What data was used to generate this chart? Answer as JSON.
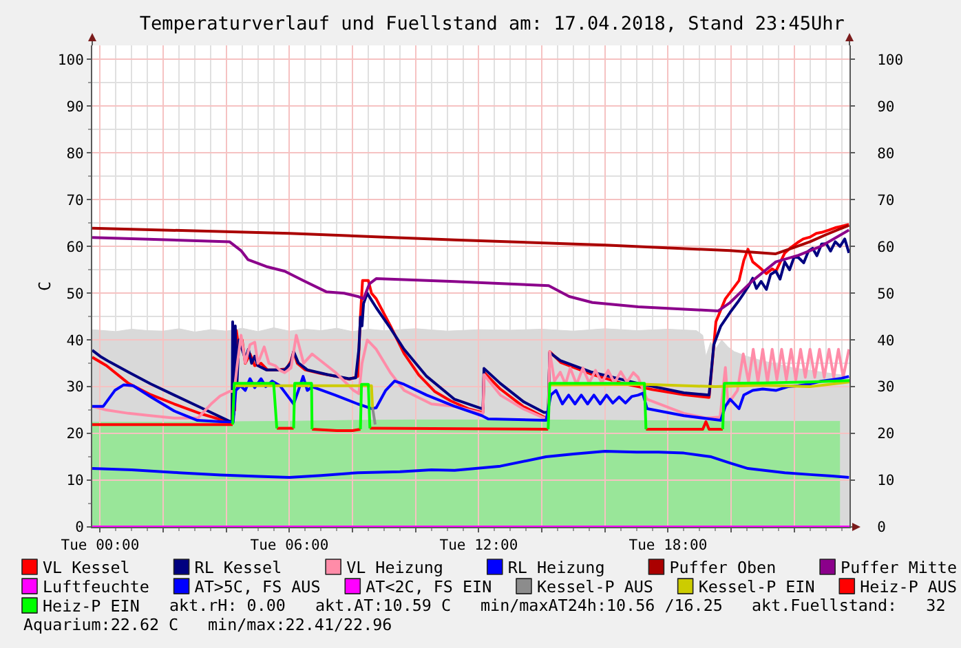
{
  "chart_data": {
    "type": "line",
    "title": "Temperaturverlauf und Fuellstand am: 17.04.2018, Stand 23:45Uhr",
    "ylabel": "C",
    "xlim": [
      "2018-04-16T23:45",
      "2018-04-17T23:45"
    ],
    "xticks": [
      {
        "value": "2018-04-17T00:00",
        "label": "Tue 00:00"
      },
      {
        "value": "2018-04-17T02:00",
        "label": null
      },
      {
        "value": "2018-04-17T04:00",
        "label": null
      },
      {
        "value": "2018-04-17T06:00",
        "label": "Tue 06:00"
      },
      {
        "value": "2018-04-17T08:00",
        "label": null
      },
      {
        "value": "2018-04-17T10:00",
        "label": null
      },
      {
        "value": "2018-04-17T12:00",
        "label": "Tue 12:00"
      },
      {
        "value": "2018-04-17T14:00",
        "label": null
      },
      {
        "value": "2018-04-17T16:00",
        "label": null
      },
      {
        "value": "2018-04-17T18:00",
        "label": "Tue 18:00"
      },
      {
        "value": "2018-04-17T20:00",
        "label": null
      },
      {
        "value": "2018-04-17T22:00",
        "label": null
      }
    ],
    "ylim": [
      0,
      103
    ],
    "yticks": [
      0,
      10,
      20,
      30,
      40,
      50,
      60,
      70,
      80,
      90,
      100
    ],
    "y2lim": [
      0,
      103
    ],
    "y2ticks": [
      0,
      10,
      20,
      30,
      40,
      50,
      60,
      70,
      80,
      90,
      100
    ],
    "grid": true,
    "legend": "bottom",
    "series": [
      {
        "type": "area",
        "color": "#d9d9d9",
        "x": [
          "2018-04-16T23:45",
          "2018-04-17T00:30",
          "2018-04-17T01:00",
          "2018-04-17T01:30",
          "2018-04-17T02:00",
          "2018-04-17T02:30",
          "2018-04-17T03:00",
          "2018-04-17T03:30",
          "2018-04-17T04:00",
          "2018-04-17T04:30",
          "2018-04-17T05:00",
          "2018-04-17T05:30",
          "2018-04-17T06:00",
          "2018-04-17T06:30",
          "2018-04-17T07:00",
          "2018-04-17T07:30",
          "2018-04-17T08:00",
          "2018-04-17T08:30",
          "2018-04-17T09:00",
          "2018-04-17T10:00",
          "2018-04-17T11:00",
          "2018-04-17T12:00",
          "2018-04-17T13:00",
          "2018-04-17T14:00",
          "2018-04-17T15:00",
          "2018-04-17T16:00",
          "2018-04-17T17:00",
          "2018-04-17T18:00",
          "2018-04-17T18:54",
          "2018-04-17T19:06",
          "2018-04-17T19:12",
          "2018-04-17T19:21",
          "2018-04-17T19:30",
          "2018-04-17T19:42",
          "2018-04-17T19:54",
          "2018-04-17T20:06",
          "2018-04-17T20:30",
          "2018-04-17T21:00",
          "2018-04-17T21:30",
          "2018-04-17T22:00",
          "2018-04-17T22:30",
          "2018-04-17T23:00",
          "2018-04-17T23:30",
          "2018-04-17T23:45"
        ],
        "values": [
          42.2,
          41.8,
          42.3,
          42.0,
          41.9,
          42.4,
          41.7,
          42.2,
          41.9,
          42.5,
          41.8,
          42.6,
          41.9,
          42.3,
          42.0,
          42.5,
          41.8,
          42.3,
          42.0,
          42.4,
          41.9,
          42.2,
          42.1,
          42.3,
          41.9,
          42.4,
          42.0,
          42.3,
          42.0,
          41.0,
          36.5,
          39.5,
          38.0,
          40.0,
          38.5,
          37.5,
          36.5,
          35.5,
          34.8,
          34.0,
          33.5,
          33.0,
          32.5,
          32.0
        ]
      },
      {
        "type": "area",
        "color": "#99e699",
        "x": [
          "2018-04-16T23:45",
          "2018-04-17T02:00",
          "2018-04-17T04:00",
          "2018-04-17T06:00",
          "2018-04-17T08:00",
          "2018-04-17T10:00",
          "2018-04-17T12:00",
          "2018-04-17T14:00",
          "2018-04-17T16:00",
          "2018-04-17T18:00",
          "2018-04-17T20:00",
          "2018-04-17T22:00",
          "2018-04-17T23:27"
        ],
        "values": [
          22.4,
          22.4,
          22.5,
          22.6,
          22.8,
          22.9,
          22.9,
          22.9,
          22.8,
          22.7,
          22.6,
          22.6,
          22.6
        ]
      },
      {
        "name": "VL Kessel",
        "color": "#ff0000",
        "x": [
          "2018-04-16T23:45",
          "2018-04-17T00:12",
          "2018-04-17T00:54",
          "2018-04-17T01:36",
          "2018-04-17T02:21",
          "2018-04-17T03:12",
          "2018-04-17T04:06",
          "2018-04-17T04:11",
          "2018-04-17T04:13",
          "2018-04-17T04:16",
          "2018-04-17T04:19",
          "2018-04-17T04:24",
          "2018-04-17T04:30",
          "2018-04-17T04:36",
          "2018-04-17T04:45",
          "2018-04-17T04:54",
          "2018-04-17T05:06",
          "2018-04-17T05:18",
          "2018-04-17T05:36",
          "2018-04-17T05:54",
          "2018-04-17T06:03",
          "2018-04-17T06:08",
          "2018-04-17T06:15",
          "2018-04-17T06:30",
          "2018-04-17T07:00",
          "2018-04-17T07:30",
          "2018-04-17T07:54",
          "2018-04-17T08:10",
          "2018-04-17T08:15",
          "2018-04-17T08:19",
          "2018-04-17T08:30",
          "2018-04-17T08:36",
          "2018-04-17T08:45",
          "2018-04-17T09:12",
          "2018-04-17T09:38",
          "2018-04-17T10:06",
          "2018-04-17T10:36",
          "2018-04-17T11:06",
          "2018-04-17T11:40",
          "2018-04-17T12:06",
          "2018-04-17T12:08",
          "2018-04-17T12:10",
          "2018-04-17T12:41",
          "2018-04-17T13:24",
          "2018-04-17T14:08",
          "2018-04-17T14:12",
          "2018-04-17T14:15",
          "2018-04-17T14:36",
          "2018-04-17T15:36",
          "2018-04-17T16:30",
          "2018-04-17T17:30",
          "2018-04-17T18:30",
          "2018-04-17T19:18",
          "2018-04-17T19:24",
          "2018-04-17T19:31",
          "2018-04-17T19:49",
          "2018-04-17T20:15",
          "2018-04-17T20:24",
          "2018-04-17T20:32",
          "2018-04-17T20:41",
          "2018-04-17T20:54",
          "2018-04-17T21:07",
          "2018-04-17T21:18",
          "2018-04-17T21:25",
          "2018-04-17T21:42",
          "2018-04-17T21:54",
          "2018-04-17T22:06",
          "2018-04-17T22:17",
          "2018-04-17T22:30",
          "2018-04-17T22:42",
          "2018-04-17T22:52",
          "2018-04-17T23:06",
          "2018-04-17T23:18",
          "2018-04-17T23:30",
          "2018-04-17T23:44"
        ],
        "values": [
          36.3,
          34.5,
          30.7,
          28.3,
          26.3,
          24.2,
          22.4,
          22.4,
          42.0,
          25.0,
          42.0,
          38.0,
          40.0,
          35.0,
          37.0,
          34.5,
          35.0,
          33.6,
          33.6,
          33.8,
          35.5,
          37.5,
          35.0,
          33.6,
          32.8,
          32.2,
          31.6,
          32.2,
          45.0,
          52.7,
          52.7,
          50.0,
          48.8,
          43.0,
          37.1,
          32.5,
          29.0,
          27.0,
          25.3,
          24.5,
          24.5,
          33.1,
          29.5,
          25.8,
          23.3,
          23.3,
          37.5,
          35.2,
          32.6,
          30.8,
          29.4,
          28.3,
          27.7,
          35.0,
          43.9,
          48.8,
          52.7,
          57.0,
          59.4,
          56.7,
          55.5,
          54.2,
          55.2,
          54.7,
          58.6,
          59.8,
          60.8,
          61.6,
          62.0,
          62.8,
          63.0,
          63.5,
          64.0,
          64.3,
          64.7
        ]
      },
      {
        "name": "RL Kessel",
        "color": "#000080",
        "x": [
          "2018-04-16T23:45",
          "2018-04-17T00:00",
          "2018-04-17T00:18",
          "2018-04-17T00:54",
          "2018-04-17T01:36",
          "2018-04-17T02:21",
          "2018-04-17T03:12",
          "2018-04-17T04:06",
          "2018-04-17T04:11",
          "2018-04-17T04:12",
          "2018-04-17T04:14",
          "2018-04-17T04:17",
          "2018-04-17T04:20",
          "2018-04-17T04:24",
          "2018-04-17T04:30",
          "2018-04-17T04:36",
          "2018-04-17T04:42",
          "2018-04-17T04:48",
          "2018-04-17T04:54",
          "2018-04-17T05:00",
          "2018-04-17T05:16",
          "2018-04-17T05:51",
          "2018-04-17T06:03",
          "2018-04-17T06:08",
          "2018-04-17T06:17",
          "2018-04-17T06:34",
          "2018-04-17T07:12",
          "2018-04-17T07:53",
          "2018-04-17T08:06",
          "2018-04-17T08:12",
          "2018-04-17T08:15",
          "2018-04-17T08:18",
          "2018-04-17T08:21",
          "2018-04-17T08:28",
          "2018-04-17T08:36",
          "2018-04-17T08:45",
          "2018-04-17T09:12",
          "2018-04-17T09:38",
          "2018-04-17T10:21",
          "2018-04-17T11:14",
          "2018-04-17T12:06",
          "2018-04-17T12:08",
          "2018-04-17T12:10",
          "2018-04-17T12:41",
          "2018-04-17T13:25",
          "2018-04-17T14:04",
          "2018-04-17T14:12",
          "2018-04-17T14:15",
          "2018-04-17T14:35",
          "2018-04-17T15:35",
          "2018-04-17T17:03",
          "2018-04-17T18:30",
          "2018-04-17T19:18",
          "2018-04-17T19:27",
          "2018-04-17T19:40",
          "2018-04-17T19:58",
          "2018-04-17T20:12",
          "2018-04-17T20:23",
          "2018-04-17T20:33",
          "2018-04-17T20:41",
          "2018-04-17T20:48",
          "2018-04-17T20:57",
          "2018-04-17T21:07",
          "2018-04-17T21:15",
          "2018-04-17T21:25",
          "2018-04-17T21:33",
          "2018-04-17T21:42",
          "2018-04-17T21:51",
          "2018-04-17T22:00",
          "2018-04-17T22:08",
          "2018-04-17T22:18",
          "2018-04-17T22:27",
          "2018-04-17T22:35",
          "2018-04-17T22:43",
          "2018-04-17T22:52",
          "2018-04-17T23:01",
          "2018-04-17T23:09",
          "2018-04-17T23:18",
          "2018-04-17T23:27",
          "2018-04-17T23:36",
          "2018-04-17T23:44"
        ],
        "values": [
          37.8,
          36.5,
          35.3,
          33.1,
          30.6,
          28.2,
          25.5,
          22.6,
          22.6,
          43.9,
          24.0,
          43.0,
          30.0,
          40.0,
          38.0,
          36.0,
          38.0,
          35.0,
          36.5,
          34.5,
          33.6,
          33.6,
          35.1,
          37.5,
          35.1,
          33.6,
          32.6,
          31.7,
          31.9,
          38.0,
          44.9,
          43.0,
          47.8,
          50.0,
          48.5,
          46.9,
          42.5,
          38.0,
          32.2,
          27.3,
          25.3,
          25.3,
          33.9,
          30.7,
          26.8,
          24.5,
          24.5,
          37.3,
          35.6,
          33.1,
          30.7,
          28.7,
          28.2,
          39.0,
          42.9,
          45.9,
          48.0,
          49.8,
          51.5,
          53.2,
          51.0,
          52.5,
          50.8,
          54.0,
          54.7,
          53.0,
          56.7,
          55.0,
          57.8,
          57.6,
          56.5,
          59.0,
          59.6,
          58.0,
          60.5,
          60.6,
          59.0,
          61.0,
          60.0,
          61.6,
          58.6
        ]
      },
      {
        "name": "VL Heizung",
        "color": "#ff8ca8",
        "x": [
          "2018-04-16T23:45",
          "2018-04-17T00:12",
          "2018-04-17T00:54",
          "2018-04-17T01:36",
          "2018-04-17T02:21",
          "2018-04-17T03:06",
          "2018-04-17T03:31",
          "2018-04-17T03:48",
          "2018-04-17T04:06",
          "2018-04-17T04:15",
          "2018-04-17T04:21",
          "2018-04-17T04:28",
          "2018-04-17T04:36",
          "2018-04-17T04:45",
          "2018-04-17T04:54",
          "2018-04-17T05:00",
          "2018-04-17T05:12",
          "2018-04-17T05:21",
          "2018-04-17T05:33",
          "2018-04-17T05:42",
          "2018-04-17T05:51",
          "2018-04-17T06:03",
          "2018-04-17T06:13",
          "2018-04-17T06:27",
          "2018-04-17T06:43",
          "2018-04-17T07:27",
          "2018-04-17T08:02",
          "2018-04-17T08:12",
          "2018-04-17T08:18",
          "2018-04-17T08:28",
          "2018-04-17T08:45",
          "2018-04-17T09:12",
          "2018-04-17T09:38",
          "2018-04-17T10:30",
          "2018-04-17T11:14",
          "2018-04-17T12:06",
          "2018-04-17T12:08",
          "2018-04-17T12:10",
          "2018-04-17T12:41",
          "2018-04-17T13:24",
          "2018-04-17T14:04",
          "2018-04-17T14:12",
          "2018-04-17T14:15",
          "2018-04-17T14:24",
          "2018-04-17T14:35",
          "2018-04-17T14:45",
          "2018-04-17T14:54",
          "2018-04-17T15:06",
          "2018-04-17T15:18",
          "2018-04-17T15:30",
          "2018-04-17T15:42",
          "2018-04-17T15:54",
          "2018-04-17T16:06",
          "2018-04-17T16:18",
          "2018-04-17T16:30",
          "2018-04-17T16:42",
          "2018-04-17T16:54",
          "2018-04-17T17:03",
          "2018-04-17T17:20",
          "2018-04-17T18:30",
          "2018-04-17T19:12",
          "2018-04-17T19:39",
          "2018-04-17T19:49",
          "2018-04-17T19:54",
          "2018-04-17T20:12",
          "2018-04-17T20:23",
          "2018-04-17T20:33",
          "2018-04-17T20:42",
          "2018-04-17T20:51",
          "2018-04-17T21:00",
          "2018-04-17T21:09",
          "2018-04-17T21:18",
          "2018-04-17T21:27",
          "2018-04-17T21:36",
          "2018-04-17T21:45",
          "2018-04-17T21:54",
          "2018-04-17T22:03",
          "2018-04-17T22:12",
          "2018-04-17T22:21",
          "2018-04-17T22:30",
          "2018-04-17T22:39",
          "2018-04-17T22:48",
          "2018-04-17T22:57",
          "2018-04-17T23:06",
          "2018-04-17T23:15",
          "2018-04-17T23:24",
          "2018-04-17T23:33",
          "2018-04-17T23:44"
        ],
        "values": [
          25.8,
          25.0,
          24.3,
          23.8,
          23.3,
          23.3,
          26.3,
          28.0,
          29.0,
          29.0,
          35.0,
          41.0,
          35.1,
          39.0,
          39.5,
          35.0,
          38.5,
          35.0,
          34.5,
          33.5,
          33.0,
          34.0,
          41.0,
          35.0,
          37.0,
          33.1,
          29.2,
          28.5,
          35.0,
          40.0,
          38.0,
          33.0,
          29.2,
          26.3,
          25.8,
          24.3,
          24.3,
          32.6,
          28.2,
          25.3,
          23.3,
          23.3,
          37.5,
          31.2,
          33.1,
          30.5,
          34.0,
          30.5,
          34.0,
          30.8,
          33.5,
          30.8,
          33.5,
          30.8,
          33.2,
          31.0,
          33.0,
          32.0,
          27.3,
          24.3,
          23.3,
          23.5,
          34.1,
          26.3,
          29.2,
          37.0,
          31.0,
          38.0,
          31.0,
          38.0,
          31.0,
          38.0,
          31.5,
          38.0,
          31.5,
          38.0,
          31.5,
          38.0,
          32.0,
          38.0,
          32.0,
          38.0,
          32.0,
          38.0,
          32.0,
          38.0,
          32.0,
          38.0
        ]
      },
      {
        "name": "RL Heizung",
        "color": "#0000ff",
        "x": [
          "2018-04-16T23:45",
          "2018-04-17T00:06",
          "2018-04-17T00:28",
          "2018-04-17T00:45",
          "2018-04-17T01:03",
          "2018-04-17T01:38",
          "2018-04-17T02:21",
          "2018-04-17T03:05",
          "2018-04-17T04:06",
          "2018-04-17T04:13",
          "2018-04-17T04:18",
          "2018-04-17T04:27",
          "2018-04-17T04:36",
          "2018-04-17T04:45",
          "2018-04-17T04:54",
          "2018-04-17T05:06",
          "2018-04-17T05:15",
          "2018-04-17T05:27",
          "2018-04-17T05:42",
          "2018-04-17T06:00",
          "2018-04-17T06:08",
          "2018-04-17T06:17",
          "2018-04-17T06:26",
          "2018-04-17T06:34",
          "2018-04-17T06:43",
          "2018-04-17T07:27",
          "2018-04-17T08:10",
          "2018-04-17T08:37",
          "2018-04-17T08:45",
          "2018-04-17T09:03",
          "2018-04-17T09:20",
          "2018-04-17T09:38",
          "2018-04-17T10:21",
          "2018-04-17T11:14",
          "2018-04-17T12:06",
          "2018-04-17T12:18",
          "2018-04-17T14:08",
          "2018-04-17T14:17",
          "2018-04-17T14:27",
          "2018-04-17T14:39",
          "2018-04-17T14:51",
          "2018-04-17T15:03",
          "2018-04-17T15:15",
          "2018-04-17T15:27",
          "2018-04-17T15:39",
          "2018-04-17T15:51",
          "2018-04-17T16:03",
          "2018-04-17T16:15",
          "2018-04-17T16:27",
          "2018-04-17T16:39",
          "2018-04-17T16:51",
          "2018-04-17T17:03",
          "2018-04-17T17:12",
          "2018-04-17T17:20",
          "2018-04-17T18:30",
          "2018-04-17T19:40",
          "2018-04-17T19:49",
          "2018-04-17T19:58",
          "2018-04-17T20:15",
          "2018-04-17T20:24",
          "2018-04-17T20:41",
          "2018-04-17T21:00",
          "2018-04-17T21:25",
          "2018-04-17T21:48",
          "2018-04-17T22:08",
          "2018-04-17T22:30",
          "2018-04-17T22:52",
          "2018-04-17T23:12",
          "2018-04-17T23:30",
          "2018-04-17T23:44"
        ],
        "values": [
          25.8,
          25.8,
          29.2,
          30.4,
          30.2,
          27.7,
          24.8,
          22.8,
          22.4,
          22.4,
          29.2,
          30.2,
          29.2,
          31.7,
          29.8,
          31.7,
          30.0,
          31.2,
          30.2,
          27.5,
          26.3,
          29.2,
          32.2,
          29.2,
          30.0,
          28.2,
          26.3,
          25.3,
          25.5,
          29.2,
          31.2,
          30.5,
          28.2,
          25.8,
          23.8,
          23.1,
          22.8,
          28.2,
          29.2,
          26.3,
          28.2,
          26.3,
          28.2,
          26.3,
          28.2,
          26.3,
          28.2,
          26.5,
          27.8,
          26.5,
          27.9,
          28.2,
          28.6,
          25.3,
          23.8,
          22.8,
          25.8,
          27.3,
          25.3,
          28.2,
          29.2,
          29.5,
          29.2,
          30.0,
          30.2,
          30.6,
          31.2,
          31.5,
          31.8,
          32.2
        ]
      },
      {
        "name": "Puffer Oben",
        "color": "#aa0000",
        "x": [
          "2018-04-16T23:45",
          "2018-04-17T06:00",
          "2018-04-17T11:14",
          "2018-04-17T16:00",
          "2018-04-17T19:58",
          "2018-04-17T21:24",
          "2018-04-17T22:00",
          "2018-04-17T22:30",
          "2018-04-17T23:00",
          "2018-04-17T23:24",
          "2018-04-17T23:44"
        ],
        "values": [
          63.9,
          62.8,
          61.4,
          60.3,
          59.1,
          58.4,
          59.8,
          61.0,
          62.5,
          63.6,
          64.5
        ]
      },
      {
        "name": "Puffer Mitte",
        "color": "#8b008b",
        "x": [
          "2018-04-16T23:45",
          "2018-04-17T04:06",
          "2018-04-17T04:28",
          "2018-04-17T04:41",
          "2018-04-17T05:16",
          "2018-04-17T05:51",
          "2018-04-17T06:26",
          "2018-04-17T07:10",
          "2018-04-17T07:44",
          "2018-04-17T08:10",
          "2018-04-17T08:21",
          "2018-04-17T08:32",
          "2018-04-17T08:45",
          "2018-04-17T11:14",
          "2018-04-17T14:13",
          "2018-04-17T14:52",
          "2018-04-17T15:36",
          "2018-04-17T17:03",
          "2018-04-17T19:35",
          "2018-04-17T19:58",
          "2018-04-17T20:41",
          "2018-04-17T21:25",
          "2018-04-17T22:08",
          "2018-04-17T22:52",
          "2018-04-17T23:44"
        ],
        "values": [
          61.9,
          61.0,
          59.1,
          57.2,
          55.7,
          54.7,
          52.7,
          50.3,
          50.0,
          49.3,
          48.8,
          52.0,
          53.1,
          52.5,
          51.6,
          49.3,
          48.0,
          47.1,
          46.2,
          48.0,
          52.7,
          56.7,
          58.1,
          60.1,
          63.5
        ]
      },
      {
        "name": "Luftfeuchte",
        "color": "#ff00ff",
        "x": [
          "2018-04-16T23:45",
          "2018-04-17T23:45"
        ],
        "values": [
          0,
          0
        ]
      },
      {
        "name": "AT>5C, FS AUS",
        "color": "#0000ff",
        "x": [
          "2018-04-16T23:45",
          "2018-04-17T01:00",
          "2018-04-17T02:30",
          "2018-04-17T03:49",
          "2018-04-17T05:00",
          "2018-04-17T06:00",
          "2018-04-17T07:00",
          "2018-04-17T08:10",
          "2018-04-17T09:30",
          "2018-04-17T10:30",
          "2018-04-17T11:14",
          "2018-04-17T12:41",
          "2018-04-17T14:08",
          "2018-04-17T15:00",
          "2018-04-17T16:00",
          "2018-04-17T17:00",
          "2018-04-17T17:42",
          "2018-04-17T18:30",
          "2018-04-17T19:22",
          "2018-04-17T20:00",
          "2018-04-17T20:32",
          "2018-04-17T21:42",
          "2018-04-17T22:30",
          "2018-04-17T23:12",
          "2018-04-17T23:44"
        ],
        "values": [
          12.5,
          12.2,
          11.6,
          11.1,
          10.8,
          10.6,
          11.0,
          11.6,
          11.8,
          12.2,
          12.1,
          13.0,
          15.0,
          15.6,
          16.2,
          16.0,
          16.0,
          15.8,
          15.0,
          13.6,
          12.5,
          11.6,
          11.2,
          10.9,
          10.6
        ]
      },
      {
        "name": "AT<2C, FS EIN",
        "color": "#ff00ff"
      },
      {
        "name": "Kessel-P AUS",
        "color": "#8c8c8c",
        "x": [
          "2018-04-17T08:38",
          "2018-04-17T08:43"
        ],
        "values": [
          25.5,
          21.9
        ]
      },
      {
        "name": "Kessel-P EIN",
        "color": "#cccc00",
        "x": [
          "2018-04-17T04:15",
          "2018-04-17T08:36",
          "2018-04-17T08:38",
          "2018-04-17T08:39",
          "2018-04-17T14:15",
          "2018-04-17T17:18",
          "2018-04-17T19:30",
          "2018-04-17T21:00",
          "2018-04-17T22:30",
          "2018-04-17T23:45"
        ],
        "values": [
          30.2,
          30.2,
          25.5,
          null,
          30.4,
          30.5,
          30.0,
          30.3,
          30.0,
          31.0
        ]
      },
      {
        "name": "Heiz-P AUS",
        "color": "#ff0000",
        "x": [
          "2018-04-16T23:45",
          "2018-04-17T04:12",
          "2018-04-17T04:13",
          "2018-04-17T05:36",
          "2018-04-17T06:08",
          "2018-04-17T06:09",
          "2018-04-17T06:43",
          "2018-04-17T07:30",
          "2018-04-17T08:00",
          "2018-04-17T08:15",
          "2018-04-17T08:16",
          "2018-04-17T08:33",
          "2018-04-17T14:12",
          "2018-04-17T14:13",
          "2018-04-17T17:18",
          "2018-04-17T19:06",
          "2018-04-17T19:12",
          "2018-04-17T19:18",
          "2018-04-17T19:44"
        ],
        "values": [
          21.9,
          21.9,
          null,
          21.1,
          21.1,
          null,
          20.9,
          20.6,
          20.6,
          20.9,
          null,
          21.1,
          20.9,
          null,
          20.9,
          20.9,
          22.5,
          20.9,
          20.9
        ]
      },
      {
        "name": "Heiz-P EIN",
        "color": "#00ff00",
        "x": [
          "2018-04-17T04:12",
          "2018-04-17T04:15",
          "2018-04-17T05:30",
          "2018-04-17T05:36",
          "2018-04-17T05:37",
          "2018-04-17T06:08",
          "2018-04-17T06:10",
          "2018-04-17T06:42",
          "2018-04-17T06:43",
          "2018-04-17T06:44",
          "2018-04-17T08:15",
          "2018-04-17T08:17",
          "2018-04-17T08:30",
          "2018-04-17T08:33",
          "2018-04-17T08:34",
          "2018-04-17T14:12",
          "2018-04-17T14:15",
          "2018-04-17T17:15",
          "2018-04-17T17:18",
          "2018-04-17T17:19",
          "2018-04-17T19:44",
          "2018-04-17T19:47",
          "2018-04-17T21:00",
          "2018-04-17T22:30",
          "2018-04-17T23:45"
        ],
        "values": [
          21.9,
          30.7,
          30.7,
          21.1,
          null,
          21.1,
          30.7,
          30.7,
          20.9,
          null,
          20.9,
          30.5,
          30.5,
          21.1,
          null,
          20.9,
          30.7,
          30.7,
          20.9,
          null,
          20.9,
          30.7,
          30.8,
          31.0,
          31.3
        ]
      }
    ],
    "annotations": [
      "akt.rH: 0.00",
      "akt.AT:10.59 C",
      "min/maxAT24h:10.56 /16.25",
      "akt.Fuellstand:   32",
      "Aquarium:22.62 C",
      "min/max:22.41/22.96"
    ]
  }
}
